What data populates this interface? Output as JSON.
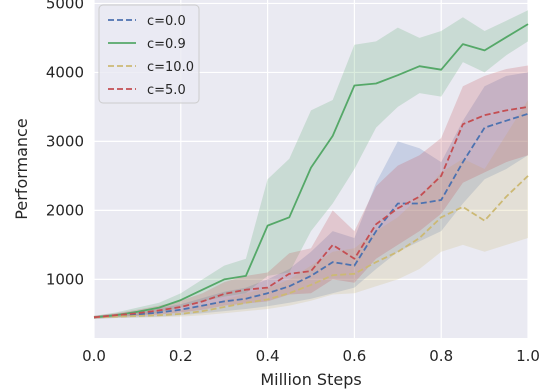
{
  "chart_data": {
    "type": "line",
    "xlabel": "Million Steps",
    "ylabel": "Performance",
    "xlim": [
      0.0,
      1.0
    ],
    "ylim": [
      150,
      5050
    ],
    "x_ticks": [
      0.0,
      0.2,
      0.4,
      0.6,
      0.8,
      1.0
    ],
    "x_tick_labels": [
      "0.0",
      "0.2",
      "0.4",
      "0.6",
      "0.8",
      "1.0"
    ],
    "y_ticks": [
      1000,
      2000,
      3000,
      4000,
      5000
    ],
    "y_tick_labels": [
      "1000",
      "2000",
      "3000",
      "4000",
      "5000"
    ],
    "grid": true,
    "legend_position": "top-left",
    "x": [
      0.0,
      0.05,
      0.1,
      0.15,
      0.2,
      0.25,
      0.3,
      0.35,
      0.4,
      0.45,
      0.5,
      0.55,
      0.6,
      0.65,
      0.7,
      0.75,
      0.8,
      0.85,
      0.9,
      0.95,
      1.0
    ],
    "series": [
      {
        "name": "c=0.0",
        "color": "#4c72b0",
        "dash": true,
        "values": [
          450,
          470,
          490,
          520,
          560,
          620,
          680,
          720,
          800,
          900,
          1050,
          1250,
          1200,
          1700,
          2100,
          2100,
          2150,
          2700,
          3200,
          3300,
          3400
        ],
        "lower": [
          430,
          440,
          450,
          460,
          480,
          510,
          540,
          570,
          610,
          660,
          720,
          800,
          880,
          1150,
          1400,
          1550,
          1700,
          2100,
          2450,
          2600,
          2800
        ],
        "upper": [
          470,
          500,
          540,
          580,
          640,
          730,
          820,
          880,
          1000,
          1150,
          1400,
          1700,
          1600,
          2400,
          3000,
          2900,
          2700,
          3300,
          3800,
          3950,
          4000
        ]
      },
      {
        "name": "c=0.9",
        "color": "#55a868",
        "dash": false,
        "values": [
          450,
          480,
          530,
          590,
          700,
          850,
          1000,
          1050,
          1780,
          1900,
          2620,
          3080,
          3810,
          3840,
          3960,
          4090,
          4040,
          4410,
          4320,
          4510,
          4700
        ],
        "lower": [
          430,
          450,
          480,
          520,
          590,
          680,
          750,
          800,
          1050,
          1100,
          1700,
          2100,
          2600,
          3200,
          3500,
          3700,
          3650,
          4150,
          4000,
          4250,
          4450
        ],
        "upper": [
          470,
          520,
          590,
          660,
          800,
          1000,
          1200,
          1300,
          2450,
          2750,
          3450,
          3600,
          4400,
          4450,
          4650,
          4500,
          4600,
          4800,
          4600,
          4750,
          4900
        ]
      },
      {
        "name": "c=10.0",
        "color": "#ccb974",
        "dash": true,
        "values": [
          450,
          460,
          470,
          480,
          500,
          540,
          600,
          660,
          710,
          800,
          920,
          1060,
          1080,
          1250,
          1400,
          1600,
          1900,
          2050,
          1850,
          2200,
          2500
        ],
        "lower": [
          430,
          440,
          445,
          450,
          460,
          480,
          510,
          540,
          570,
          620,
          690,
          780,
          800,
          900,
          1000,
          1150,
          1400,
          1500,
          1400,
          1500,
          1600
        ],
        "upper": [
          470,
          485,
          500,
          520,
          560,
          620,
          700,
          800,
          870,
          1000,
          1200,
          1400,
          1450,
          1700,
          1900,
          2200,
          2550,
          2750,
          2600,
          3100,
          3600
        ]
      },
      {
        "name": "c=5.0",
        "color": "#c44e52",
        "dash": true,
        "values": [
          450,
          480,
          510,
          550,
          600,
          680,
          790,
          850,
          880,
          1080,
          1120,
          1500,
          1300,
          1800,
          2030,
          2200,
          2500,
          3250,
          3380,
          3450,
          3500
        ],
        "lower": [
          430,
          450,
          470,
          490,
          520,
          560,
          620,
          650,
          680,
          780,
          800,
          1000,
          950,
          1300,
          1500,
          1700,
          1950,
          2400,
          2550,
          2700,
          2800
        ],
        "upper": [
          470,
          510,
          560,
          620,
          690,
          800,
          960,
          1050,
          1100,
          1380,
          1450,
          2000,
          1700,
          2350,
          2650,
          2800,
          3050,
          3800,
          3950,
          4050,
          4100
        ]
      }
    ]
  }
}
